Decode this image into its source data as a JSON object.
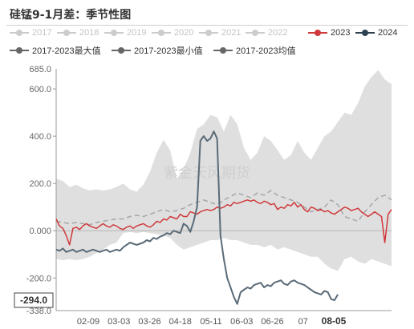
{
  "title": "硅锰9-1月差：季节性图",
  "chart_data": {
    "type": "line",
    "ylim": [
      -338.0,
      685.0
    ],
    "y_ticks": [
      -200.0,
      0.0,
      200.0,
      400.0,
      600.0
    ],
    "y_tick_labels": [
      "-200.0",
      "0.000",
      "200.0",
      "400.0",
      "600.0"
    ],
    "y_top_label": "685.0",
    "y_bottom_label": "-338.0",
    "cursor_value_label": "-294.0",
    "x_ticks": [
      "02-09",
      "03-03",
      "03-26",
      "04-18",
      "05-11",
      "06-03",
      "06-26",
      "07",
      "08-05"
    ],
    "x_tick_bold": "08-05",
    "watermark": "紫金天风期货",
    "legend": [
      {
        "name": "2017",
        "color": "#cccccc",
        "faded": true
      },
      {
        "name": "2018",
        "color": "#cccccc",
        "faded": true
      },
      {
        "name": "2019",
        "color": "#cccccc",
        "faded": true
      },
      {
        "name": "2020",
        "color": "#cccccc",
        "faded": true
      },
      {
        "name": "2021",
        "color": "#cccccc",
        "faded": true
      },
      {
        "name": "2022",
        "color": "#cccccc",
        "faded": true
      },
      {
        "name": "2023",
        "color": "#d0383a",
        "faded": false
      },
      {
        "name": "2024",
        "color": "#2e4150",
        "faded": false
      },
      {
        "name": "2017-2023最大值",
        "color": "#666666",
        "faded": false
      },
      {
        "name": "2017-2023最小值",
        "color": "#666666",
        "faded": false
      },
      {
        "name": "2017-2023均值",
        "color": "#666666",
        "faded": false
      }
    ],
    "range_band": {
      "name_max": "2017-2023最大值",
      "name_min": "2017-2023最小值",
      "color": "#d9d9d9",
      "x": [
        0,
        2,
        4,
        6,
        8,
        10,
        12,
        14,
        16,
        18,
        20,
        22,
        24,
        26,
        28,
        30,
        32,
        34,
        36,
        38,
        40,
        42,
        44,
        46,
        48,
        50,
        52,
        54,
        56,
        58,
        60,
        62,
        64,
        66,
        68,
        70,
        72,
        74,
        76,
        78,
        80,
        82,
        84,
        86,
        88,
        90,
        92,
        94,
        96,
        98,
        100
      ],
      "max": [
        220,
        210,
        185,
        195,
        180,
        170,
        175,
        170,
        175,
        185,
        200,
        175,
        165,
        195,
        250,
        330,
        385,
        340,
        220,
        260,
        330,
        430,
        450,
        490,
        480,
        420,
        490,
        450,
        350,
        300,
        330,
        400,
        380,
        340,
        300,
        320,
        380,
        330,
        300,
        350,
        400,
        420,
        460,
        500,
        490,
        540,
        610,
        650,
        680,
        640,
        620
      ],
      "min": [
        -120,
        -125,
        -120,
        -125,
        -120,
        -110,
        -95,
        -80,
        -60,
        -50,
        -10,
        -5,
        -10,
        -5,
        -10,
        -15,
        -20,
        -30,
        -60,
        -80,
        -70,
        -60,
        -50,
        -40,
        -40,
        -30,
        -40,
        -40,
        -50,
        -60,
        -60,
        -70,
        -60,
        -80,
        -70,
        -80,
        -90,
        -100,
        -110,
        -110,
        -140,
        -160,
        -170,
        -120,
        -110,
        -130,
        -140,
        -120,
        -130,
        -140,
        -150
      ]
    },
    "series": [
      {
        "name": "2017-2023均值",
        "color": "#a6a6a6",
        "dashed": true,
        "x": [
          0,
          2,
          4,
          6,
          8,
          10,
          12,
          14,
          16,
          18,
          20,
          22,
          24,
          26,
          28,
          30,
          32,
          34,
          36,
          38,
          40,
          42,
          44,
          46,
          48,
          50,
          52,
          54,
          56,
          58,
          60,
          62,
          64,
          66,
          68,
          70,
          72,
          74,
          76,
          78,
          80,
          82,
          84,
          86,
          88,
          90,
          92,
          94,
          96,
          98,
          100
        ],
        "values": [
          40,
          35,
          30,
          35,
          30,
          25,
          35,
          40,
          45,
          50,
          50,
          60,
          65,
          60,
          70,
          80,
          90,
          80,
          85,
          95,
          110,
          120,
          130,
          120,
          110,
          130,
          145,
          160,
          150,
          140,
          160,
          150,
          170,
          150,
          140,
          130,
          120,
          100,
          80,
          90,
          100,
          130,
          110,
          60,
          50,
          40,
          80,
          110,
          140,
          150,
          130
        ]
      },
      {
        "name": "2023",
        "color": "#d0383a",
        "dashed": false,
        "x": [
          0,
          1,
          2,
          3,
          4,
          5,
          6,
          7,
          8,
          9,
          10,
          11,
          12,
          13,
          14,
          15,
          16,
          17,
          18,
          19,
          20,
          21,
          22,
          23,
          24,
          25,
          26,
          27,
          28,
          29,
          30,
          31,
          32,
          33,
          34,
          35,
          36,
          37,
          38,
          39,
          40,
          41,
          42,
          43,
          44,
          45,
          46,
          47,
          48,
          49,
          50,
          51,
          52,
          53,
          54,
          55,
          56,
          57,
          58,
          59,
          60,
          61,
          62,
          63,
          64,
          65,
          66,
          67,
          68,
          69,
          70,
          71,
          72,
          73,
          74,
          75,
          76,
          77,
          78,
          79,
          80,
          81,
          82,
          83,
          84,
          85,
          86,
          87,
          88,
          89,
          90,
          91,
          92,
          93,
          94,
          95,
          96,
          97,
          98,
          99,
          100
        ],
        "values": [
          50,
          20,
          10,
          -20,
          -60,
          10,
          15,
          5,
          20,
          30,
          20,
          15,
          10,
          20,
          30,
          20,
          15,
          25,
          20,
          10,
          5,
          15,
          20,
          10,
          20,
          25,
          30,
          20,
          15,
          25,
          40,
          35,
          50,
          45,
          60,
          55,
          50,
          70,
          60,
          60,
          80,
          75,
          70,
          80,
          85,
          90,
          85,
          90,
          100,
          95,
          100,
          110,
          105,
          120,
          115,
          120,
          125,
          130,
          125,
          130,
          120,
          115,
          125,
          120,
          110,
          115,
          90,
          100,
          95,
          110,
          105,
          120,
          100,
          110,
          90,
          80,
          100,
          95,
          85,
          90,
          80,
          85,
          75,
          70,
          80,
          90,
          100,
          95,
          85,
          90,
          95,
          80,
          70,
          60,
          70,
          80,
          70,
          60,
          -50,
          70,
          90
        ]
      },
      {
        "name": "2024",
        "color": "#5a6b78",
        "dashed": false,
        "x": [
          0,
          1,
          2,
          3,
          4,
          5,
          6,
          7,
          8,
          9,
          10,
          11,
          12,
          13,
          14,
          15,
          16,
          17,
          18,
          19,
          20,
          21,
          22,
          23,
          24,
          25,
          26,
          27,
          28,
          29,
          30,
          31,
          32,
          33,
          34,
          35,
          36,
          37,
          38,
          39,
          40,
          41,
          42,
          43,
          44,
          45,
          46,
          47,
          48,
          49,
          50,
          51,
          52,
          53,
          54,
          55,
          56,
          57,
          58,
          59,
          60,
          61,
          62,
          63,
          64,
          65,
          66,
          67,
          68,
          69,
          70,
          71,
          72,
          73,
          74,
          75,
          76,
          77,
          78,
          79,
          80,
          81,
          82,
          83,
          84
        ],
        "values": [
          -80,
          -85,
          -75,
          -90,
          -85,
          -80,
          -90,
          -85,
          -80,
          -90,
          -85,
          -80,
          -85,
          -90,
          -85,
          -80,
          -90,
          -85,
          -80,
          -85,
          -70,
          -60,
          -50,
          -55,
          -60,
          -55,
          -50,
          -40,
          -45,
          -30,
          -35,
          -25,
          -20,
          -10,
          -15,
          0,
          -5,
          -10,
          30,
          20,
          -5,
          40,
          100,
          380,
          400,
          380,
          390,
          420,
          390,
          -20,
          -120,
          -200,
          -240,
          -280,
          -310,
          -260,
          -250,
          -240,
          -245,
          -230,
          -225,
          -220,
          -240,
          -230,
          -235,
          -220,
          -215,
          -210,
          -225,
          -230,
          -215,
          -210,
          -220,
          -225,
          -230,
          -240,
          -250,
          -260,
          -265,
          -270,
          -255,
          -260,
          -290,
          -294,
          -270
        ]
      }
    ]
  }
}
